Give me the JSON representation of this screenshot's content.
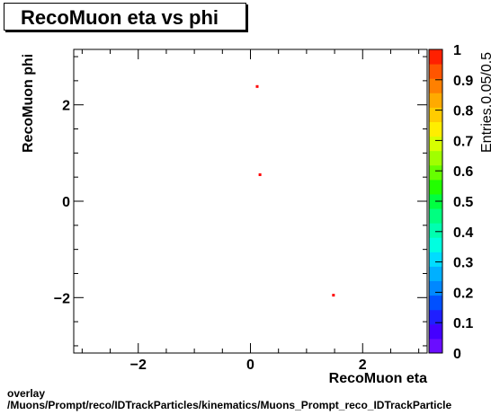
{
  "chart_data": {
    "type": "scatter",
    "title": "RecoMuon eta vs phi",
    "xlabel": "RecoMuon eta",
    "ylabel": "RecoMuon phi",
    "zlabel": "Entries.0.05/0.5",
    "xlim": [
      -3.15,
      3.15
    ],
    "ylim": [
      -3.15,
      3.15
    ],
    "zlim": [
      0,
      1
    ],
    "x_ticks": [
      -2,
      0,
      2
    ],
    "x_tick_labels": [
      "−2",
      "0",
      "2"
    ],
    "y_ticks": [
      -2,
      0,
      2
    ],
    "y_tick_labels": [
      "−2",
      "0",
      "2"
    ],
    "z_ticks": [
      0,
      0.1,
      0.2,
      0.3,
      0.4,
      0.5,
      0.6,
      0.7,
      0.8,
      0.9,
      1
    ],
    "z_tick_labels": [
      "0",
      "0.1",
      "0.2",
      "0.3",
      "0.4",
      "0.5",
      "0.6",
      "0.7",
      "0.8",
      "0.9",
      "1"
    ],
    "points": [
      {
        "x": 0.12,
        "y": 2.38,
        "z": 1
      },
      {
        "x": 0.17,
        "y": 0.55,
        "z": 1
      },
      {
        "x": 1.48,
        "y": -1.95,
        "z": 1
      }
    ],
    "grid": false,
    "palette": [
      "#6a0dff",
      "#4400ff",
      "#1f1fff",
      "#0050ff",
      "#0088ff",
      "#00b0ff",
      "#00ddff",
      "#00ffe0",
      "#00ffb0",
      "#00ff80",
      "#00ff40",
      "#22ff00",
      "#66ff00",
      "#a0ff00",
      "#d8ff00",
      "#ffee00",
      "#ffcc00",
      "#ffaa00",
      "#ff8000",
      "#ff5500",
      "#ff2000"
    ],
    "marker_color": "#ff0000"
  },
  "footer": {
    "line1": "overlay",
    "line2": "/Muons/Prompt/reco/IDTrackParticles/kinematics/Muons_Prompt_reco_IDTrackParticle"
  }
}
